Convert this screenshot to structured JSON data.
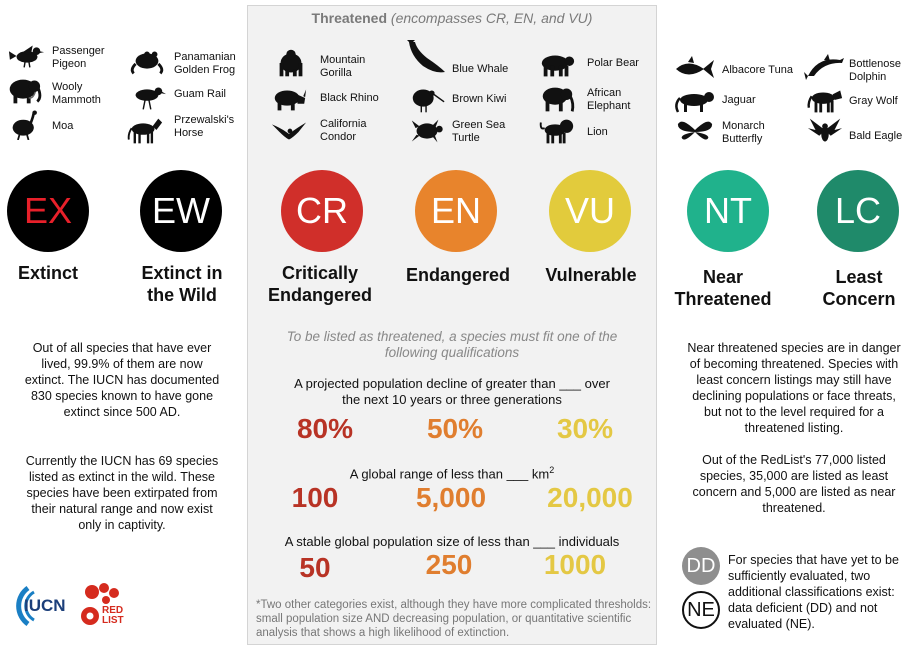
{
  "panel": {
    "title_bold": "Threatened",
    "title_italic": "(encompasses CR, EN, and VU)"
  },
  "animals": {
    "ex": [
      {
        "name": "Passenger Pigeon",
        "icon": "pigeon-icon"
      },
      {
        "name": "Wooly Mammoth",
        "icon": "mammoth-icon"
      },
      {
        "name": "Moa",
        "icon": "moa-icon"
      }
    ],
    "ew": [
      {
        "name": "Panamanian Golden Frog",
        "icon": "frog-icon"
      },
      {
        "name": "Guam Rail",
        "icon": "rail-icon"
      },
      {
        "name": "Przewalski's Horse",
        "icon": "horse-icon"
      }
    ],
    "cr": [
      {
        "name": "Mountain Gorilla",
        "icon": "gorilla-icon"
      },
      {
        "name": "Black Rhino",
        "icon": "rhino-icon"
      },
      {
        "name": "California Condor",
        "icon": "condor-icon"
      }
    ],
    "en": [
      {
        "name": "Blue Whale",
        "icon": "whale-icon"
      },
      {
        "name": "Brown Kiwi",
        "icon": "kiwi-icon"
      },
      {
        "name": "Green Sea Turtle",
        "icon": "turtle-icon"
      }
    ],
    "vu": [
      {
        "name": "Polar Bear",
        "icon": "bear-icon"
      },
      {
        "name": "African Elephant",
        "icon": "elephant-icon"
      },
      {
        "name": "Lion",
        "icon": "lion-icon"
      }
    ],
    "nt": [
      {
        "name": "Albacore Tuna",
        "icon": "tuna-icon"
      },
      {
        "name": "Jaguar",
        "icon": "jaguar-icon"
      },
      {
        "name": "Monarch Butterfly",
        "icon": "butterfly-icon"
      }
    ],
    "lc": [
      {
        "name": "Bottlenose Dolphin",
        "icon": "dolphin-icon"
      },
      {
        "name": "Gray Wolf",
        "icon": "wolf-icon"
      },
      {
        "name": "Bald Eagle",
        "icon": "eagle-icon"
      }
    ]
  },
  "categories": [
    {
      "code": "EX",
      "label": "Extinct",
      "color": "#000000",
      "text_color": "#e8202a"
    },
    {
      "code": "EW",
      "label": "Extinct in the Wild",
      "color": "#000000",
      "text_color": "#ffffff"
    },
    {
      "code": "CR",
      "label": "Critically Endangered",
      "color": "#d02f2a",
      "text_color": "#ffffff"
    },
    {
      "code": "EN",
      "label": "Endangered",
      "color": "#e8842c",
      "text_color": "#ffffff"
    },
    {
      "code": "VU",
      "label": "Vulnerable",
      "color": "#e2cb3c",
      "text_color": "#ffffff"
    },
    {
      "code": "NT",
      "label": "Near Threatened",
      "color": "#20b28c",
      "text_color": "#ffffff"
    },
    {
      "code": "LC",
      "label": "Least Concern",
      "color": "#1f8a6a",
      "text_color": "#ffffff"
    }
  ],
  "left_text": {
    "p1": "Out of all species that have ever lived, 99.9% of them are now extinct.  The IUCN has documented 830 species known to have gone extinct since 500 AD.",
    "p2": "Currently the IUCN has 69 species listed as extinct in the wild. These species have been extirpated from their natural range and now exist only in captivity."
  },
  "right_text": {
    "p1": "Near threatened species are in danger of becoming threatened. Species with least concern listings may still have declining populations or face threats, but not to the level required for a threatened listing.",
    "p2": "Out of the RedList's 77,000 listed species, 35,000 are listed as least concern and 5,000 are listed as near threatened.",
    "dd_ne": "For species that have yet to be sufficiently evaluated, two additional classifications exist: data deficient (DD) and not evaluated (NE).",
    "dd": "DD",
    "ne": "NE"
  },
  "criteria": {
    "intro": "To be listed as threatened, a species must fit one of the following qualifications",
    "decline": {
      "text": "A projected population decline of greater than ___ over the next 10 years or three generations",
      "values": [
        "80%",
        "50%",
        "30%"
      ]
    },
    "range": {
      "text": "A global range of less than ___ km",
      "sup": "2",
      "values": [
        "100",
        "5,000",
        "20,000"
      ]
    },
    "stable": {
      "text": "A stable global population size of less than ___ individuals",
      "values": [
        "50",
        "250",
        "1000"
      ]
    }
  },
  "footnote": "*Two other categories exist, although they have more complicated thresholds: small population size AND decreasing population, or quantitative scientific analysis that shows a high likelihood of extinction.",
  "logos": {
    "iucn": "IUCN",
    "redlist_top": "RED",
    "redlist_bottom": "LIST"
  }
}
